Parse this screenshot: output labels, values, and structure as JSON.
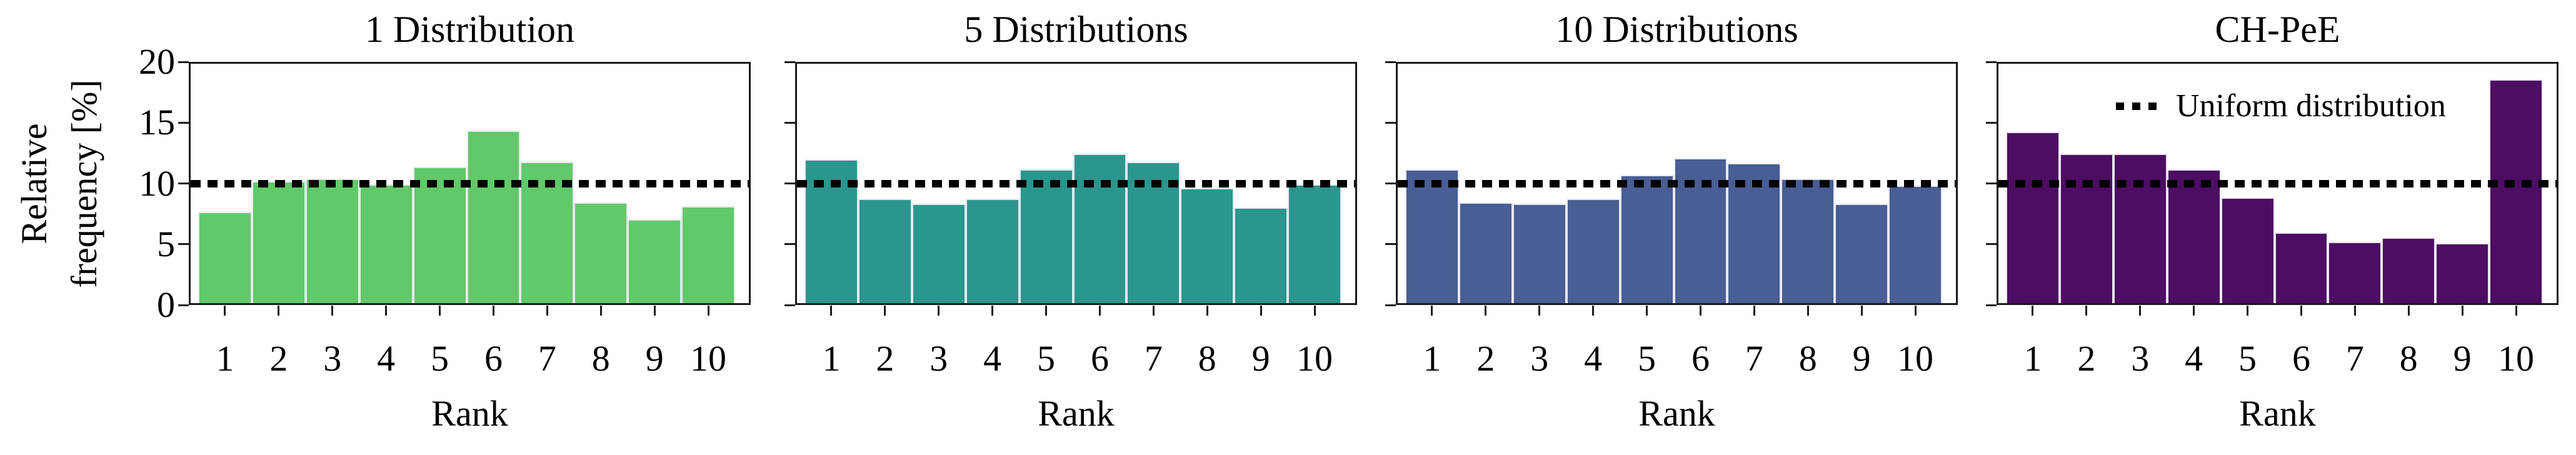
{
  "y_axis": {
    "label_line1": "Relative",
    "label_line2": "frequency [%]",
    "ticks": [
      "20",
      "15",
      "10",
      "5",
      "0"
    ],
    "range": [
      0,
      20
    ]
  },
  "x_axis": {
    "label": "Rank",
    "ticks": [
      "1",
      "2",
      "3",
      "4",
      "5",
      "6",
      "7",
      "8",
      "9",
      "10"
    ]
  },
  "legend": {
    "label": "Uniform distribution"
  },
  "reference_line": {
    "value": 10,
    "color": "#000000",
    "style": "dotted"
  },
  "chart_data": [
    {
      "type": "bar",
      "title": "1 Distribution",
      "color": "#61c96a",
      "categories": [
        1,
        2,
        3,
        4,
        5,
        6,
        7,
        8,
        9,
        10
      ],
      "values": [
        7.6,
        10.2,
        10.4,
        9.9,
        11.4,
        14.4,
        11.8,
        8.4,
        7.0,
        8.1
      ],
      "xlabel": "Rank",
      "ylabel": "Relative frequency [%]",
      "ylim": [
        0,
        20
      ],
      "reference_line": 10
    },
    {
      "type": "bar",
      "title": "5 Distributions",
      "color": "#2a968e",
      "categories": [
        1,
        2,
        3,
        4,
        5,
        6,
        7,
        8,
        9,
        10
      ],
      "values": [
        12.0,
        8.7,
        8.3,
        8.7,
        11.2,
        12.5,
        11.8,
        9.6,
        8.0,
        9.9
      ],
      "xlabel": "Rank",
      "ylabel": "Relative frequency [%]",
      "ylim": [
        0,
        20
      ],
      "reference_line": 10
    },
    {
      "type": "bar",
      "title": "10 Distributions",
      "color": "#485e94",
      "categories": [
        1,
        2,
        3,
        4,
        5,
        6,
        7,
        8,
        9,
        10
      ],
      "values": [
        11.2,
        8.4,
        8.3,
        8.7,
        10.7,
        12.1,
        11.7,
        10.4,
        8.3,
        9.8
      ],
      "xlabel": "Rank",
      "ylabel": "Relative frequency [%]",
      "ylim": [
        0,
        20
      ],
      "reference_line": 10
    },
    {
      "type": "bar",
      "title": "CH-PeE",
      "color": "#4c0d63",
      "categories": [
        1,
        2,
        3,
        4,
        5,
        6,
        7,
        8,
        9,
        10
      ],
      "values": [
        14.3,
        12.5,
        12.5,
        11.2,
        8.8,
        5.9,
        5.1,
        5.5,
        5.0,
        18.7
      ],
      "xlabel": "Rank",
      "ylabel": "Relative frequency [%]",
      "ylim": [
        0,
        20
      ],
      "reference_line": 10,
      "has_legend": true
    }
  ]
}
